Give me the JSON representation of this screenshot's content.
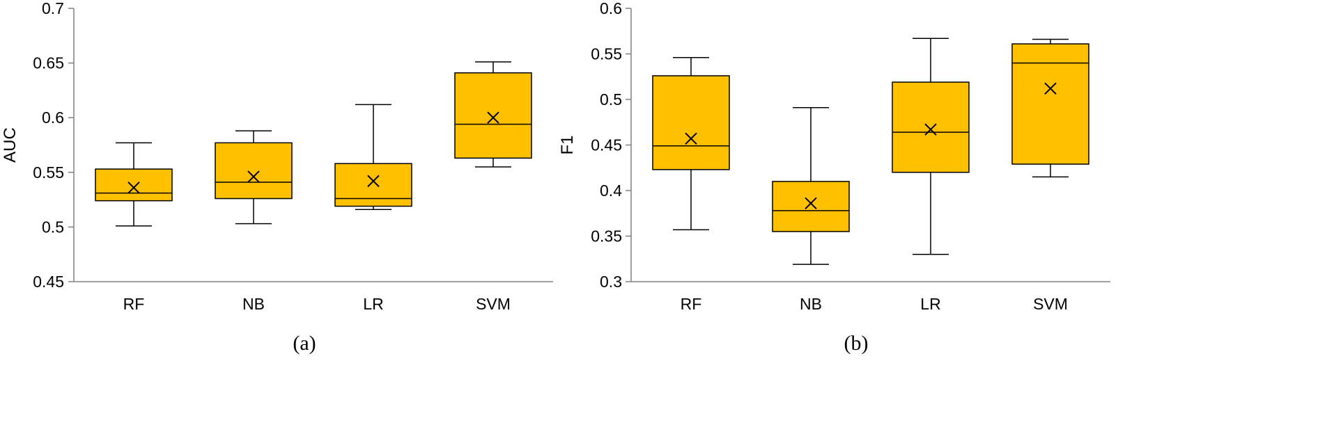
{
  "chart_data": [
    {
      "type": "box",
      "panel_label": "(a)",
      "ylabel": "AUC",
      "xlabel": "",
      "ylim": [
        0.45,
        0.7
      ],
      "yticks": [
        0.45,
        0.5,
        0.55,
        0.6,
        0.65,
        0.7
      ],
      "ytick_labels": [
        "0.45",
        "0.5",
        "0.55",
        "0.6",
        "0.65",
        "0.7"
      ],
      "categories": [
        "RF",
        "NB",
        "LR",
        "SVM"
      ],
      "boxes": [
        {
          "min": 0.501,
          "q1": 0.524,
          "median": 0.531,
          "q3": 0.553,
          "max": 0.577,
          "mean": 0.536
        },
        {
          "min": 0.503,
          "q1": 0.526,
          "median": 0.541,
          "q3": 0.577,
          "max": 0.588,
          "mean": 0.546
        },
        {
          "min": 0.516,
          "q1": 0.519,
          "median": 0.526,
          "q3": 0.558,
          "max": 0.612,
          "mean": 0.542
        },
        {
          "min": 0.555,
          "q1": 0.563,
          "median": 0.594,
          "q3": 0.641,
          "max": 0.651,
          "mean": 0.6
        }
      ],
      "grid": false,
      "legend": "none",
      "box_color": "#FFC000",
      "edge_color": "#000000"
    },
    {
      "type": "box",
      "panel_label": "(b)",
      "ylabel": "F1",
      "xlabel": "",
      "ylim": [
        0.3,
        0.6
      ],
      "yticks": [
        0.3,
        0.35,
        0.4,
        0.45,
        0.5,
        0.55,
        0.6
      ],
      "ytick_labels": [
        "0.3",
        "0.35",
        "0.4",
        "0.45",
        "0.5",
        "0.55",
        "0.6"
      ],
      "categories": [
        "RF",
        "NB",
        "LR",
        "SVM"
      ],
      "boxes": [
        {
          "min": 0.357,
          "q1": 0.423,
          "median": 0.449,
          "q3": 0.526,
          "max": 0.546,
          "mean": 0.457
        },
        {
          "min": 0.319,
          "q1": 0.355,
          "median": 0.378,
          "q3": 0.41,
          "max": 0.491,
          "mean": 0.386
        },
        {
          "min": 0.33,
          "q1": 0.42,
          "median": 0.464,
          "q3": 0.519,
          "max": 0.567,
          "mean": 0.467
        },
        {
          "min": 0.415,
          "q1": 0.429,
          "median": 0.54,
          "q3": 0.561,
          "max": 0.566,
          "mean": 0.512
        }
      ],
      "grid": false,
      "legend": "none",
      "box_color": "#FFC000",
      "edge_color": "#000000"
    }
  ]
}
